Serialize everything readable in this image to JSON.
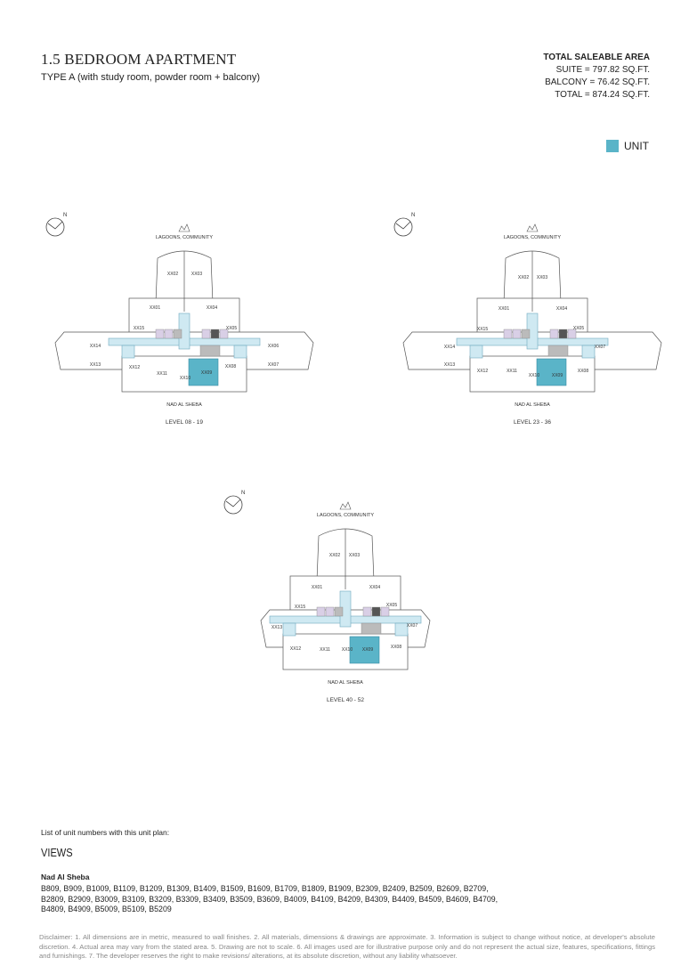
{
  "header": {
    "title": "1.5 BEDROOM APARTMENT",
    "subtitle": "TYPE A (with study room, powder room + balcony)"
  },
  "area": {
    "title": "TOTAL SALEABLE AREA",
    "lines": [
      "SUITE = 797.82 SQ.FT.",
      "BALCONY = 76.42 SQ.FT.",
      "TOTAL = 874.24 SQ.FT."
    ]
  },
  "legend": {
    "label": "UNIT"
  },
  "compass_label": "N",
  "plans": [
    {
      "top_label": "LAGOONS, COMMUNITY",
      "bottom_label": "NAD AL SHEBA",
      "level": "LEVEL 08 - 19",
      "units": [
        "XX02",
        "XX03",
        "XX01",
        "XX04",
        "XX15",
        "XX05",
        "XX14",
        "XX06",
        "XX13",
        "XX12",
        "XX11",
        "XX10",
        "XX09",
        "XX08",
        "XX07"
      ]
    },
    {
      "top_label": "LAGOONS, COMMUNITY",
      "bottom_label": "NAD AL SHEBA",
      "level": "LEVEL 23 - 36",
      "units": [
        "XX02",
        "XX03",
        "XX01",
        "XX04",
        "XX15",
        "XX05",
        "XX14",
        "XX07",
        "XX13",
        "XX12",
        "XX11",
        "XX10",
        "XX09",
        "XX08"
      ]
    },
    {
      "top_label": "LAGOONS, COMMUNITY",
      "bottom_label": "NAD AL SHEBA",
      "level": "LEVEL 40 - 52",
      "units": [
        "XX02",
        "XX03",
        "XX01",
        "XX04",
        "XX15",
        "XX05",
        "XX13",
        "XX07",
        "XX12",
        "XX11",
        "XX10",
        "XX09",
        "XX08"
      ]
    }
  ],
  "list": {
    "intro": "List of unit numbers with this unit plan:",
    "heading": "VIEWS",
    "group": "Nad Al Sheba",
    "units": "B809, B909, B1009, B1109, B1209, B1309, B1409, B1509, B1609, B1709, B1809, B1909, B2309, B2409, B2509, B2609, B2709, B2809, B2909, B3009, B3109, B3209, B3309, B3409, B3509, B3609, B4009, B4109, B4209, B4309, B4409, B4509, B4609, B4709, B4809, B4909, B5009, B5109, B5209"
  },
  "disclaimer": "Disclaimer: 1. All dimensions are in metric, measured to wall finishes. 2. All materials, dimensions & drawings are approximate. 3. Information is subject to change without notice, at developer's absolute discretion. 4. Actual area may vary from the stated area. 5. Drawing are not to scale. 6. All images used are for illustrative purpose only and do not represent the actual size, features, specifications, fittings and furnishings. 7. The developer reserves the right to make revisions/ alterations, at its absolute discretion, without any liability whatsoever."
}
